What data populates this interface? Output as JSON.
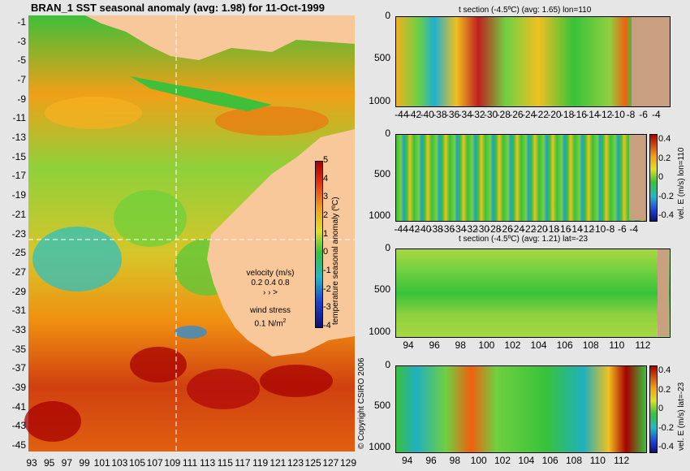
{
  "colors": {
    "page_bg": "#e6e6e6",
    "land": "#f8c89a",
    "section_land": "#c8a07f",
    "cold": "#1b3fd1",
    "neutral_green": "#38c23a",
    "warm": "#f0a018",
    "hot": "#a80000",
    "crosshair": "#ffffff"
  },
  "chart_data": [
    {
      "type": "heatmap",
      "title": "BRAN_1  SST seasonal anomaly (avg: 1.98) for 11-Oct-1999",
      "xticks": [
        "93",
        "95",
        "97",
        "99",
        "101",
        "103",
        "105",
        "107",
        "109",
        "111",
        "113",
        "115",
        "117",
        "119",
        "121",
        "123",
        "125",
        "127",
        "129"
      ],
      "yticks": [
        "-1",
        "-3",
        "-5",
        "-7",
        "-9",
        "-11",
        "-13",
        "-15",
        "-17",
        "-19",
        "-21",
        "-23",
        "-25",
        "-27",
        "-29",
        "-31",
        "-33",
        "-35",
        "-37",
        "-39",
        "-41",
        "-43",
        "-45"
      ],
      "xlim": [
        92.5,
        130
      ],
      "ylim": [
        -45,
        0.5
      ],
      "crosshair": {
        "lon": 110,
        "lat": -23
      },
      "colorbar": {
        "label": "temperature seasonal anomaly (ºC)",
        "ticks": [
          "5",
          "4",
          "3",
          "2",
          "1",
          "0",
          "-1",
          "-2",
          "-3",
          "-4"
        ],
        "range": [
          -4,
          5
        ]
      },
      "legend": {
        "velocity_title": "velocity (m/s)",
        "velocity_values": "0.2 0.4 0.8",
        "wind_title": "wind stress",
        "wind_value": "0.1 N/m",
        "wind_sup": "2"
      }
    },
    {
      "type": "heatmap",
      "title": "t section (-4.5ºC) (avg: 1.65) lon=110",
      "xticks": [
        "-44",
        "-42",
        "-40",
        "-38",
        "-36",
        "-34",
        "-32",
        "-30",
        "-28",
        "-26",
        "-24",
        "-22",
        "-20",
        "-18",
        "-16",
        "-14",
        "-12",
        "-10",
        "-8",
        "-6",
        "-4"
      ],
      "yticks": [
        "0",
        "500",
        "1000"
      ],
      "xlim": [
        -45,
        -2
      ],
      "ylim": [
        1050,
        0
      ]
    },
    {
      "type": "heatmap",
      "title": "",
      "xticks": [
        "-44",
        "-42",
        "-40",
        "-38",
        "-36",
        "-34",
        "-32",
        "-30",
        "-28",
        "-26",
        "-24",
        "-22",
        "-20",
        "-18",
        "-16",
        "-14",
        "-12",
        "-10",
        "-8",
        "-6",
        "-4"
      ],
      "yticks": [
        "0",
        "500",
        "1000"
      ],
      "xlim": [
        -45,
        -2
      ],
      "ylim": [
        1050,
        0
      ],
      "colorbar": {
        "label": "vel. E (m/s) lon=110",
        "ticks": [
          "0.4",
          "0.2",
          "0",
          "-0.2",
          "-0.4"
        ],
        "range": [
          -0.5,
          0.5
        ]
      }
    },
    {
      "type": "heatmap",
      "title": "t section (-4.5ºC) (avg: 1.21) lat=-23",
      "xticks": [
        "94",
        "96",
        "98",
        "100",
        "102",
        "104",
        "106",
        "108",
        "110",
        "112"
      ],
      "yticks": [
        "0",
        "500",
        "1000"
      ],
      "xlim": [
        93,
        114
      ],
      "ylim": [
        1050,
        0
      ]
    },
    {
      "type": "heatmap",
      "title": "",
      "xticks": [
        "94",
        "96",
        "98",
        "100",
        "102",
        "104",
        "106",
        "108",
        "110",
        "112"
      ],
      "yticks": [
        "0",
        "500",
        "1000"
      ],
      "xlim": [
        93,
        114
      ],
      "ylim": [
        1050,
        0
      ],
      "colorbar": {
        "label": "vel. E (m/s) lat=-23",
        "ticks": [
          "0.4",
          "0.2",
          "0",
          "-0.2",
          "-0.4"
        ],
        "range": [
          -0.5,
          0.5
        ]
      }
    }
  ],
  "copyright": "© Copyright CSIRO 2006"
}
